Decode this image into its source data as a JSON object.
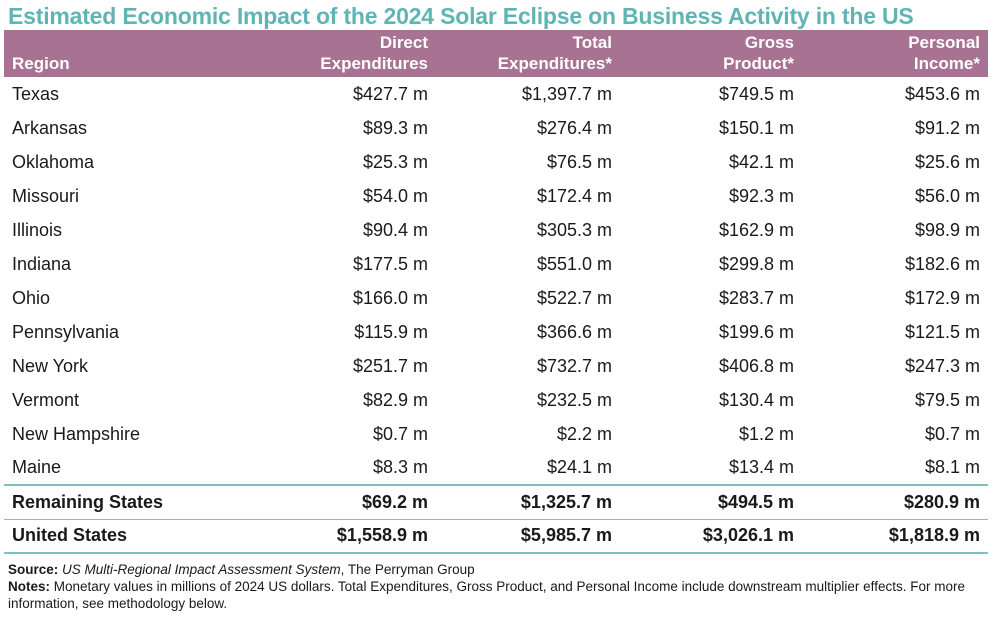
{
  "title": "Estimated Economic Impact of the 2024 Solar Eclipse on Business Activity in the US",
  "colors": {
    "title": "#5fb4b4",
    "header_bg": "#a87292",
    "rule": "#7cc2c2"
  },
  "chart_data": {
    "type": "table",
    "title": "Estimated Economic Impact of the 2024 Solar Eclipse on Business Activity in the US",
    "columns": [
      {
        "lines": [
          "Region"
        ]
      },
      {
        "lines": [
          "Direct",
          "Expenditures"
        ]
      },
      {
        "lines": [
          "Total",
          "Expenditures*"
        ]
      },
      {
        "lines": [
          "Gross",
          "Product*"
        ]
      },
      {
        "lines": [
          "Personal",
          "Income*"
        ]
      }
    ],
    "rows": [
      [
        "Texas",
        "$427.7 m",
        "$1,397.7 m",
        "$749.5 m",
        "$453.6 m"
      ],
      [
        "Arkansas",
        "$89.3 m",
        "$276.4 m",
        "$150.1 m",
        "$91.2 m"
      ],
      [
        "Oklahoma",
        "$25.3 m",
        "$76.5 m",
        "$42.1 m",
        "$25.6 m"
      ],
      [
        "Missouri",
        "$54.0 m",
        "$172.4 m",
        "$92.3 m",
        "$56.0 m"
      ],
      [
        "Illinois",
        "$90.4 m",
        "$305.3 m",
        "$162.9 m",
        "$98.9 m"
      ],
      [
        "Indiana",
        "$177.5 m",
        "$551.0 m",
        "$299.8 m",
        "$182.6 m"
      ],
      [
        "Ohio",
        "$166.0 m",
        "$522.7 m",
        "$283.7 m",
        "$172.9 m"
      ],
      [
        "Pennsylvania",
        "$115.9 m",
        "$366.6 m",
        "$199.6 m",
        "$121.5 m"
      ],
      [
        "New York",
        "$251.7 m",
        "$732.7 m",
        "$406.8 m",
        "$247.3 m"
      ],
      [
        "Vermont",
        "$82.9 m",
        "$232.5 m",
        "$130.4 m",
        "$79.5 m"
      ],
      [
        "New Hampshire",
        "$0.7 m",
        "$2.2 m",
        "$1.2 m",
        "$0.7 m"
      ],
      [
        "Maine",
        "$8.3 m",
        "$24.1 m",
        "$13.4 m",
        "$8.1 m"
      ]
    ],
    "summary_rows": [
      [
        "Remaining States",
        "$69.2 m",
        "$1,325.7 m",
        "$494.5 m",
        "$280.9 m"
      ],
      [
        "United States",
        "$1,558.9 m",
        "$5,985.7 m",
        "$3,026.1 m",
        "$1,818.9 m"
      ]
    ]
  },
  "footer": {
    "source_label": "Source:",
    "source_italic": "US Multi-Regional Impact Assessment System",
    "source_rest": ", The Perryman Group",
    "notes_label": "Notes:",
    "notes_text": "Monetary values in millions of 2024 US dollars. Total Expenditures, Gross Product, and Personal Income include downstream multiplier effects. For more information, see methodology below."
  }
}
